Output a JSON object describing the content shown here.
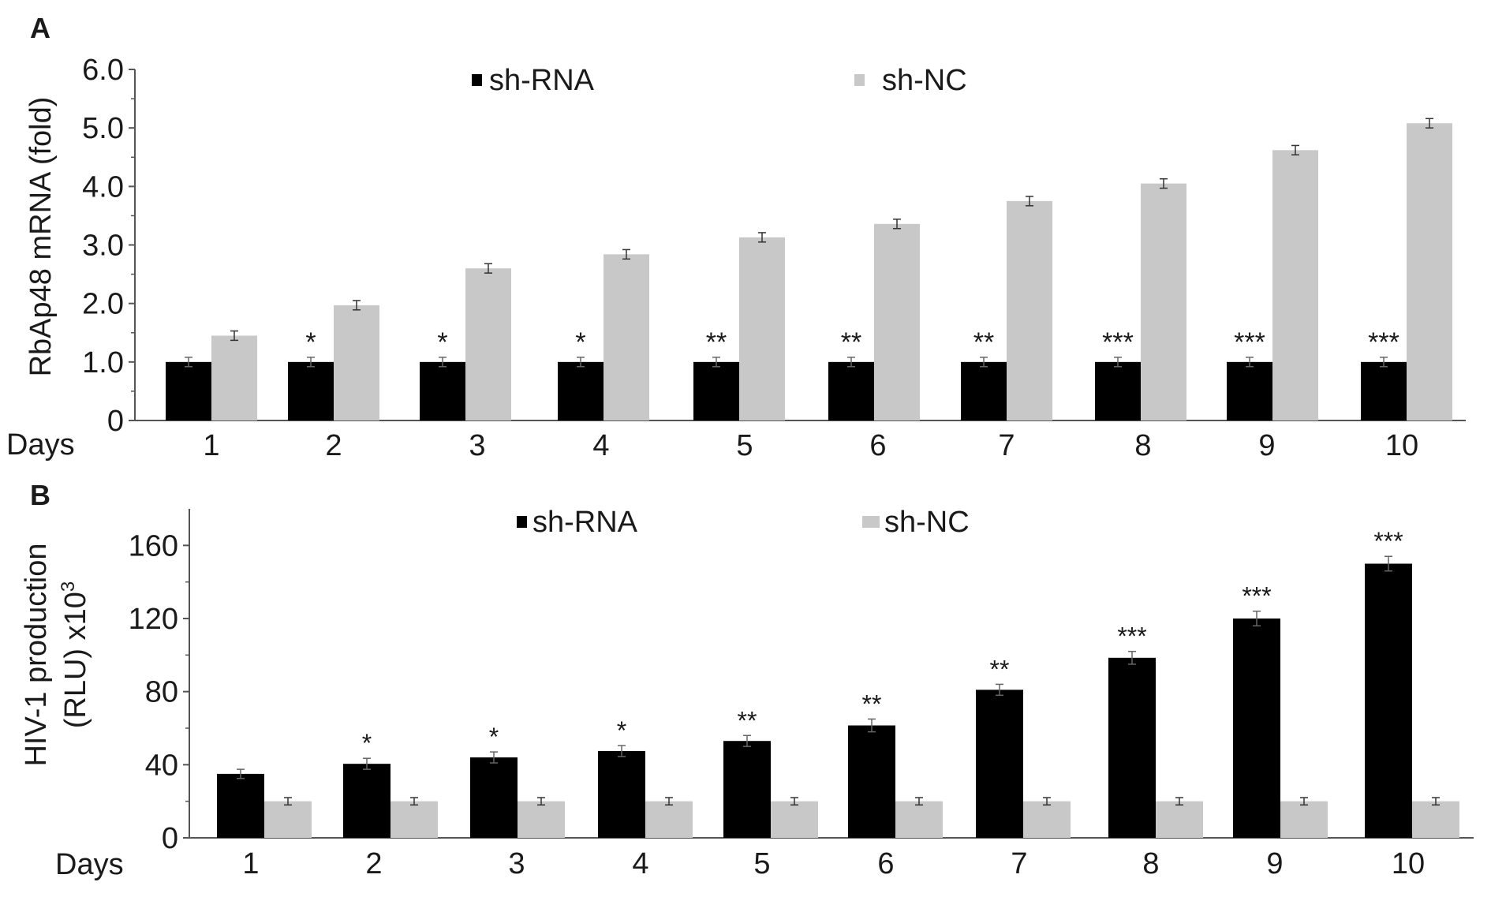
{
  "colors": {
    "series_dark": "#000000",
    "series_light": "#c8c8c8",
    "axis": "#555555",
    "text": "#1a1a1a"
  },
  "chart_data": [
    {
      "panel": "A",
      "type": "bar",
      "title": "",
      "xlabel": "Days",
      "ylabel": "RbAp48 mRNA (fold)",
      "categories": [
        "1",
        "2",
        "3",
        "4",
        "5",
        "6",
        "7",
        "8",
        "9",
        "10"
      ],
      "yticks": [
        "0",
        "1.0",
        "2.0",
        "3.0",
        "4.0",
        "5.0",
        "6.0"
      ],
      "ylim": [
        0,
        6
      ],
      "grid": false,
      "legend_position": "top",
      "series": [
        {
          "name": "sh-RNA",
          "color": "#000000",
          "values": [
            1.0,
            1.0,
            1.0,
            1.0,
            1.0,
            1.0,
            1.0,
            1.0,
            1.0,
            1.0
          ],
          "errors": [
            0.08,
            0.08,
            0.08,
            0.08,
            0.08,
            0.08,
            0.08,
            0.08,
            0.08,
            0.08
          ]
        },
        {
          "name": "sh-NC",
          "color": "#c8c8c8",
          "values": [
            1.45,
            1.97,
            2.6,
            2.84,
            3.13,
            3.36,
            3.75,
            4.05,
            4.62,
            5.08
          ],
          "errors": [
            0.08,
            0.08,
            0.08,
            0.08,
            0.08,
            0.08,
            0.08,
            0.08,
            0.08,
            0.08
          ]
        }
      ],
      "significance": [
        "",
        "*",
        "*",
        "*",
        "**",
        "**",
        "**",
        "***",
        "***",
        "***"
      ]
    },
    {
      "panel": "B",
      "type": "bar",
      "title": "",
      "xlabel": "Days",
      "ylabel_line1": "HIV-1 production",
      "ylabel_line2": "(RLU)  x10",
      "ylabel_sup": "3",
      "categories": [
        "1",
        "2",
        "3",
        "4",
        "5",
        "6",
        "7",
        "8",
        "9",
        "10"
      ],
      "yticks": [
        "0",
        "40",
        "80",
        "120",
        "160"
      ],
      "ylim": [
        0,
        180
      ],
      "grid": false,
      "legend_position": "top",
      "series": [
        {
          "name": "sh-RNA",
          "color": "#000000",
          "values": [
            35,
            40.5,
            44,
            47.5,
            53,
            61.5,
            81,
            98.5,
            120,
            150
          ],
          "errors": [
            2.5,
            3,
            3,
            3,
            3,
            3.5,
            3,
            3.5,
            4,
            4
          ]
        },
        {
          "name": "sh-NC",
          "color": "#c8c8c8",
          "values": [
            20,
            20,
            20,
            20,
            20,
            20,
            20,
            20,
            20,
            20
          ],
          "errors": [
            2,
            2,
            2,
            2,
            2,
            2,
            2,
            2,
            2,
            2
          ]
        }
      ],
      "significance": [
        "",
        "*",
        "*",
        "*",
        "**",
        "**",
        "**",
        "***",
        "***",
        "***"
      ]
    }
  ]
}
